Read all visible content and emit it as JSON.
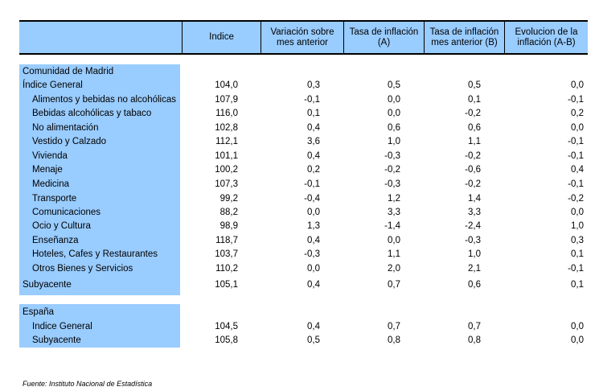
{
  "header": {
    "indice": "Indice",
    "variacion": "Variación sobre\nmes anterior",
    "tasa": "Tasa de inflación\n(A)",
    "tasa_ant": "Tasa de inflación\nmes anterior (B)",
    "evolucion": "Evolucion de la\ninflación (A-B)"
  },
  "madrid": {
    "title": "Comunidad de Madrid",
    "rows": [
      {
        "label": "Índice General",
        "indent": false,
        "v": [
          "104,0",
          "0,3",
          "0,5",
          "0,5",
          "0,0"
        ]
      },
      {
        "label": "Alimentos y bebidas no alcohólicas",
        "indent": true,
        "v": [
          "107,9",
          "-0,1",
          "0,0",
          "0,1",
          "-0,1"
        ]
      },
      {
        "label": "Bebidas alcohólicas y tabaco",
        "indent": true,
        "v": [
          "116,0",
          "0,1",
          "0,0",
          "-0,2",
          "0,2"
        ]
      },
      {
        "label": "No alimentación",
        "indent": true,
        "v": [
          "102,8",
          "0,4",
          "0,6",
          "0,6",
          "0,0"
        ]
      },
      {
        "label": "Vestido y Calzado",
        "indent": true,
        "v": [
          "112,1",
          "3,6",
          "1,0",
          "1,1",
          "-0,1"
        ]
      },
      {
        "label": "Vivienda",
        "indent": true,
        "v": [
          "101,1",
          "0,4",
          "-0,3",
          "-0,2",
          "-0,1"
        ]
      },
      {
        "label": "Menaje",
        "indent": true,
        "v": [
          "100,2",
          "0,2",
          "-0,2",
          "-0,6",
          "0,4"
        ]
      },
      {
        "label": "Medicina",
        "indent": true,
        "v": [
          "107,3",
          "-0,1",
          "-0,3",
          "-0,2",
          "-0,1"
        ]
      },
      {
        "label": "Transporte",
        "indent": true,
        "v": [
          "99,2",
          "-0,4",
          "1,2",
          "1,4",
          "-0,2"
        ]
      },
      {
        "label": "Comunicaciones",
        "indent": true,
        "v": [
          "88,2",
          "0,0",
          "3,3",
          "3,3",
          "0,0"
        ]
      },
      {
        "label": "Ocio y Cultura",
        "indent": true,
        "v": [
          "98,9",
          "1,3",
          "-1,4",
          "-2,4",
          "1,0"
        ]
      },
      {
        "label": "Enseñanza",
        "indent": true,
        "v": [
          "118,7",
          "0,4",
          "0,0",
          "-0,3",
          "0,3"
        ]
      },
      {
        "label": "Hoteles, Cafes y Restaurantes",
        "indent": true,
        "v": [
          "103,7",
          "-0,3",
          "1,1",
          "1,0",
          "0,1"
        ]
      },
      {
        "label": "Otros Bienes y Servicios",
        "indent": true,
        "v": [
          "110,2",
          "0,0",
          "2,0",
          "2,1",
          "-0,1"
        ]
      },
      {
        "label": "Subyacente",
        "indent": false,
        "v": [
          "105,1",
          "0,4",
          "0,7",
          "0,6",
          "0,1"
        ]
      }
    ]
  },
  "espana": {
    "title": "España",
    "rows": [
      {
        "label": "Indice General",
        "indent": true,
        "v": [
          "104,5",
          "0,4",
          "0,7",
          "0,7",
          "0,0"
        ]
      },
      {
        "label": "Subyacente",
        "indent": true,
        "v": [
          "105,8",
          "0,5",
          "0,8",
          "0,8",
          "0,0"
        ]
      }
    ]
  },
  "source": "Fuente: Instituto Nacional de Estadística"
}
